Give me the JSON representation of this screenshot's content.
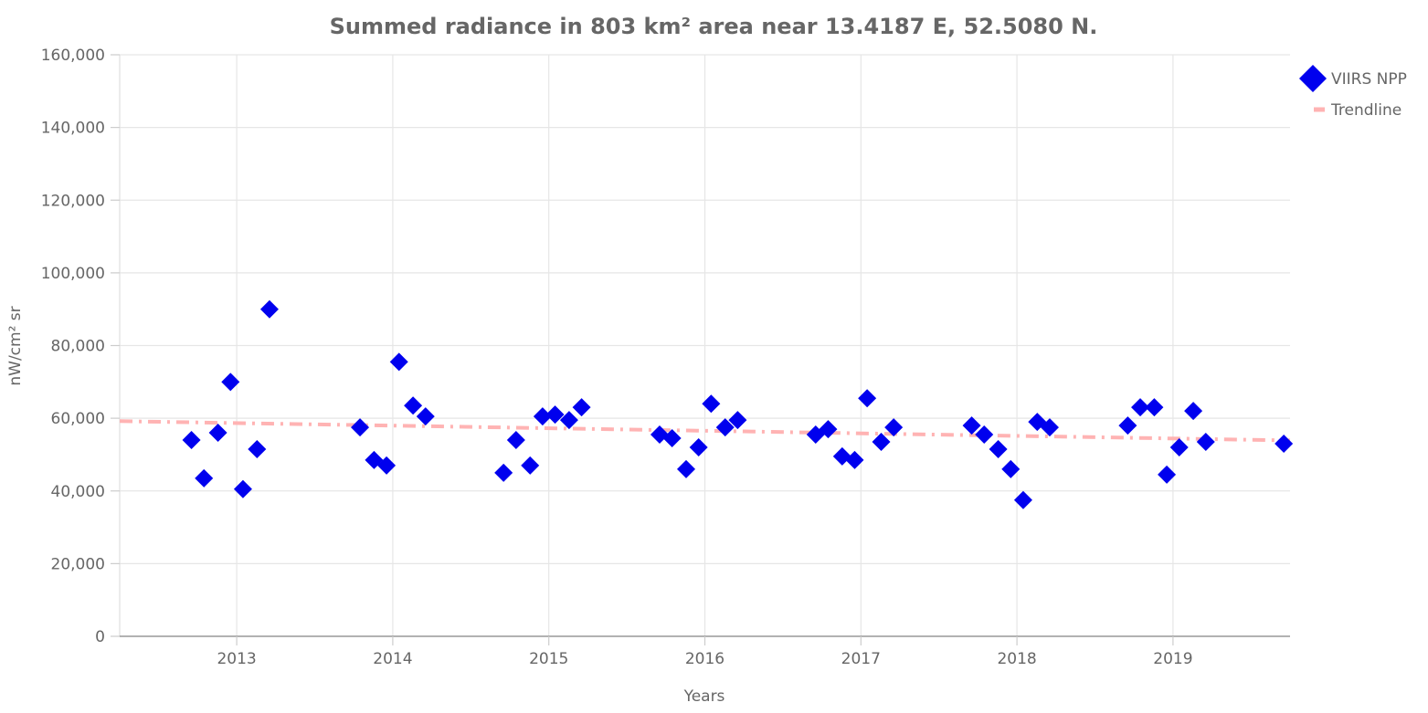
{
  "chart_data": {
    "type": "scatter",
    "title": "Summed radiance in 803 km² area near 13.4187 E, 52.5080 N.",
    "xlabel": "Years",
    "ylabel": "nW/cm² sr",
    "xlim": [
      2012.25,
      2019.75
    ],
    "ylim": [
      0,
      160000
    ],
    "grid": true,
    "legend_position": "top-right",
    "x_ticks": [
      2013,
      2014,
      2015,
      2016,
      2017,
      2018,
      2019
    ],
    "x_tick_labels": [
      "2013",
      "2014",
      "2015",
      "2016",
      "2017",
      "2018",
      "2019"
    ],
    "y_ticks": [
      0,
      20000,
      40000,
      60000,
      80000,
      100000,
      120000,
      140000,
      160000
    ],
    "y_tick_labels": [
      "0",
      "20,000",
      "40,000",
      "60,000",
      "80,000",
      "100,000",
      "120,000",
      "140,000",
      "160,000"
    ],
    "series": [
      {
        "name": "VIIRS NPP",
        "kind": "scatter",
        "marker": "diamond",
        "color": "#0000ee",
        "x": [
          2012.71,
          2012.79,
          2012.88,
          2012.96,
          2013.04,
          2013.13,
          2013.21,
          2013.79,
          2013.88,
          2013.96,
          2014.04,
          2014.13,
          2014.21,
          2014.71,
          2014.79,
          2014.88,
          2014.96,
          2015.04,
          2015.13,
          2015.21,
          2015.71,
          2015.79,
          2015.88,
          2015.96,
          2016.04,
          2016.13,
          2016.21,
          2016.71,
          2016.79,
          2016.88,
          2016.96,
          2017.04,
          2017.13,
          2017.21,
          2017.71,
          2017.79,
          2017.88,
          2017.96,
          2018.04,
          2018.13,
          2018.21,
          2018.71,
          2018.79,
          2018.88,
          2018.96,
          2019.04,
          2019.13,
          2019.21,
          2019.71
        ],
        "y": [
          54000,
          43500,
          56000,
          70000,
          40500,
          51500,
          90000,
          57500,
          48500,
          47000,
          75500,
          63500,
          60500,
          45000,
          54000,
          47000,
          60500,
          61000,
          59500,
          63000,
          55500,
          54500,
          46000,
          52000,
          64000,
          57500,
          59500,
          55500,
          57000,
          49500,
          48500,
          65500,
          53500,
          57500,
          58000,
          55500,
          51500,
          46000,
          37500,
          59000,
          57500,
          58000,
          63000,
          63000,
          44500,
          52000,
          62000,
          53500,
          53000
        ]
      },
      {
        "name": "Trendline",
        "kind": "line",
        "style": "dashdot",
        "color": "#ffb3b3",
        "x": [
          2012.25,
          2019.75
        ],
        "y": [
          59200,
          53900
        ]
      }
    ]
  }
}
